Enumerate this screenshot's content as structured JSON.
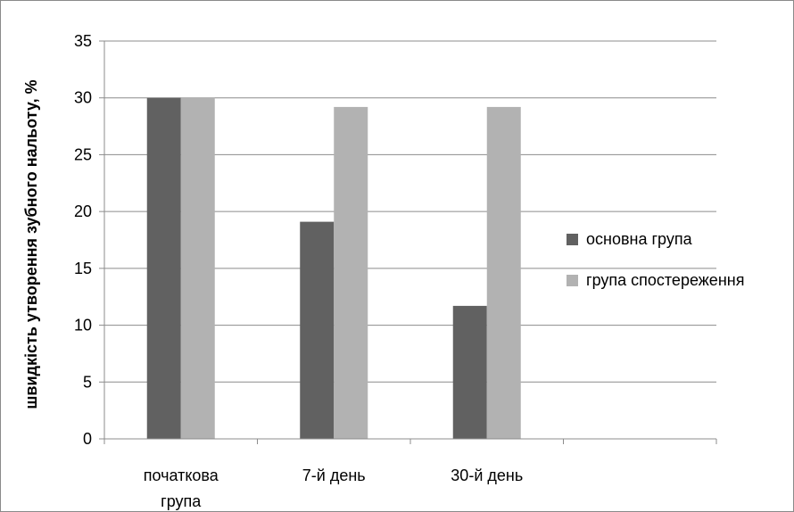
{
  "chart_data": {
    "type": "bar",
    "categories": [
      "початкова група",
      "7-й день",
      "30-й день",
      ""
    ],
    "series": [
      {
        "name": "основна група",
        "values": [
          30,
          19.1,
          11.7,
          null
        ],
        "color": "#616161"
      },
      {
        "name": "група спостереження",
        "values": [
          30,
          29.2,
          29.2,
          null
        ],
        "color": "#b2b2b2"
      }
    ],
    "xlabel": "",
    "ylabel": "швидкість утворення зубного нальоту, %",
    "ylim": [
      0,
      35
    ],
    "yticks": [
      0,
      5,
      10,
      15,
      20,
      25,
      30,
      35
    ],
    "grid": true,
    "legend_position": "right"
  }
}
